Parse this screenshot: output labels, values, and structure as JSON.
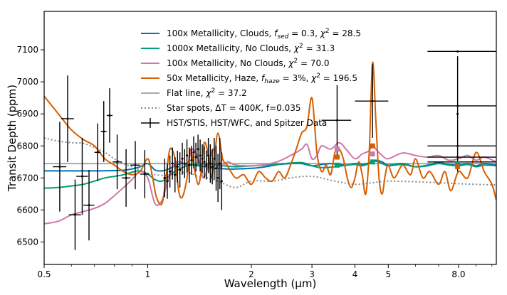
{
  "chart_data": {
    "type": "line",
    "xlabel": "Wavelength (μm)",
    "ylabel": "Transit Depth (ppm)",
    "xscale": "log",
    "xlim": [
      0.5,
      10.3
    ],
    "ylim": [
      6430,
      7220
    ],
    "x_ticks": [
      {
        "value": 0.5,
        "label": "0.5"
      },
      {
        "value": 1,
        "label": "1"
      },
      {
        "value": 2,
        "label": "2"
      },
      {
        "value": 3,
        "label": "3"
      },
      {
        "value": 4,
        "label": "4"
      },
      {
        "value": 5,
        "label": "5"
      },
      {
        "value": 8,
        "label": "8.0"
      }
    ],
    "y_ticks": [
      6500,
      6600,
      6700,
      6800,
      6900,
      7000,
      7100
    ],
    "legend_position": "top-center",
    "series": [
      {
        "name": "100x Metallicity, Clouds, f_sed = 0.3, χ² = 28.5",
        "label_parts": [
          "100x Metallicity, Clouds, ",
          "f",
          "sed",
          " = 0.3, ",
          "χ",
          "2",
          " = 28.5"
        ],
        "color": "#0072b2",
        "style": "solid",
        "width": 2,
        "x": [
          0.5,
          0.6,
          0.7,
          0.8,
          0.85,
          0.9,
          0.95,
          1.0,
          1.05,
          1.1,
          1.15,
          1.2,
          1.25,
          1.3,
          1.35,
          1.4,
          1.45,
          1.5,
          1.55,
          1.6,
          1.7,
          1.8,
          2.0,
          2.2,
          2.4,
          2.6,
          2.8,
          3.0,
          3.2,
          3.4,
          3.6,
          3.8,
          4.0,
          4.2,
          4.4,
          4.6,
          4.8,
          5.0,
          5.5,
          6.0,
          6.5,
          7.0,
          7.5,
          8.0,
          8.5,
          9.0,
          9.5,
          10.3
        ],
        "y": [
          6722,
          6722,
          6722,
          6723,
          6724,
          6728,
          6735,
          6745,
          6725,
          6722,
          6728,
          6738,
          6745,
          6743,
          6740,
          6738,
          6736,
          6734,
          6730,
          6730,
          6728,
          6728,
          6730,
          6735,
          6742,
          6745,
          6745,
          6738,
          6742,
          6745,
          6742,
          6740,
          6745,
          6742,
          6747,
          6755,
          6750,
          6740,
          6745,
          6735,
          6740,
          6748,
          6742,
          6740,
          6745,
          6738,
          6745,
          6740
        ]
      },
      {
        "name": "1000x Metallicity, No Clouds, χ² = 31.3",
        "label_parts": [
          "1000x Metallicity, No Clouds, ",
          "",
          "",
          "",
          "χ",
          "2",
          " = 31.3"
        ],
        "color": "#009e73",
        "style": "solid",
        "width": 2,
        "x": [
          0.5,
          0.55,
          0.6,
          0.65,
          0.7,
          0.75,
          0.8,
          0.85,
          0.9,
          0.95,
          1.0,
          1.05,
          1.1,
          1.15,
          1.2,
          1.3,
          1.4,
          1.5,
          1.6,
          1.8,
          2.0,
          2.2,
          2.5,
          2.8,
          3.0,
          3.2,
          3.5,
          3.8,
          4.0,
          4.2,
          4.4,
          4.6,
          4.8,
          5.0,
          5.5,
          6.0,
          6.5,
          7.0,
          7.5,
          8.0,
          8.5,
          9.0,
          9.5,
          10.3
        ],
        "y": [
          6668,
          6670,
          6675,
          6680,
          6690,
          6700,
          6705,
          6710,
          6718,
          6722,
          6712,
          6695,
          6690,
          6705,
          6720,
          6738,
          6742,
          6745,
          6740,
          6735,
          6738,
          6740,
          6745,
          6748,
          6738,
          6732,
          6735,
          6740,
          6742,
          6738,
          6745,
          6752,
          6745,
          6738,
          6742,
          6735,
          6738,
          6745,
          6740,
          6738,
          6742,
          6735,
          6740,
          6738
        ]
      },
      {
        "name": "100x Metallicity, No Clouds, χ² = 70.0",
        "label_parts": [
          "100x Metallicity, No Clouds, ",
          "",
          "",
          "",
          "χ",
          "2",
          " = 70.0"
        ],
        "color": "#cc79a7",
        "style": "solid",
        "width": 2,
        "x": [
          0.5,
          0.55,
          0.6,
          0.65,
          0.7,
          0.75,
          0.8,
          0.85,
          0.9,
          0.95,
          1.0,
          1.05,
          1.1,
          1.15,
          1.2,
          1.25,
          1.3,
          1.35,
          1.4,
          1.45,
          1.5,
          1.55,
          1.6,
          1.7,
          1.8,
          2.0,
          2.2,
          2.4,
          2.6,
          2.8,
          2.9,
          3.0,
          3.1,
          3.2,
          3.4,
          3.6,
          3.8,
          4.0,
          4.2,
          4.4,
          4.5,
          4.6,
          4.8,
          5.0,
          5.5,
          6.0,
          6.5,
          7.0,
          7.5,
          8.0,
          8.5,
          9.0,
          9.5,
          10.3
        ],
        "y": [
          6557,
          6565,
          6585,
          6595,
          6605,
          6620,
          6645,
          6670,
          6695,
          6720,
          6700,
          6620,
          6630,
          6700,
          6745,
          6750,
          6740,
          6790,
          6760,
          6700,
          6740,
          6790,
          6730,
          6750,
          6740,
          6738,
          6742,
          6752,
          6770,
          6790,
          6805,
          6760,
          6770,
          6800,
          6790,
          6810,
          6785,
          6760,
          6775,
          6785,
          6805,
          6790,
          6770,
          6760,
          6778,
          6770,
          6765,
          6770,
          6755,
          6760,
          6770,
          6755,
          6765,
          6750
        ]
      },
      {
        "name": "50x Metallicity, Haze, f_haze = 3%, χ² = 196.5",
        "label_parts": [
          "50x Metallicity, Haze, ",
          "f",
          "haze",
          " = 3%, ",
          "χ",
          "2",
          " = 196.5"
        ],
        "color": "#d55e00",
        "style": "solid",
        "width": 2,
        "x": [
          0.5,
          0.55,
          0.6,
          0.65,
          0.7,
          0.75,
          0.8,
          0.85,
          0.9,
          0.95,
          1.0,
          1.03,
          1.06,
          1.1,
          1.13,
          1.16,
          1.2,
          1.23,
          1.26,
          1.3,
          1.33,
          1.36,
          1.4,
          1.43,
          1.46,
          1.5,
          1.53,
          1.56,
          1.6,
          1.65,
          1.7,
          1.8,
          1.9,
          2.0,
          2.1,
          2.2,
          2.3,
          2.4,
          2.5,
          2.6,
          2.7,
          2.8,
          2.9,
          3.0,
          3.1,
          3.2,
          3.3,
          3.4,
          3.5,
          3.6,
          3.7,
          3.8,
          3.9,
          4.0,
          4.1,
          4.2,
          4.3,
          4.4,
          4.5,
          4.6,
          4.7,
          4.8,
          4.9,
          5.0,
          5.2,
          5.5,
          5.8,
          6.0,
          6.3,
          6.6,
          7.0,
          7.3,
          7.6,
          8.0,
          8.5,
          9.0,
          9.5,
          10.0,
          10.3
        ],
        "y": [
          6955,
          6900,
          6850,
          6820,
          6800,
          6760,
          6740,
          6720,
          6710,
          6720,
          6760,
          6710,
          6640,
          6620,
          6700,
          6790,
          6760,
          6660,
          6640,
          6700,
          6790,
          6740,
          6680,
          6720,
          6810,
          6770,
          6700,
          6760,
          6840,
          6760,
          6740,
          6700,
          6710,
          6680,
          6720,
          6700,
          6690,
          6720,
          6700,
          6740,
          6790,
          6840,
          6860,
          6950,
          6780,
          6720,
          6740,
          6710,
          6780,
          6790,
          6760,
          6700,
          6670,
          6700,
          6750,
          6710,
          6650,
          6780,
          7060,
          6880,
          6700,
          6650,
          6710,
          6740,
          6700,
          6740,
          6710,
          6760,
          6700,
          6720,
          6680,
          6720,
          6660,
          6720,
          6700,
          6780,
          6720,
          6680,
          6630
        ]
      },
      {
        "name": "Flat line, χ² = 37.2",
        "label_parts": [
          "Flat line, ",
          "",
          "",
          "",
          "χ",
          "2",
          " = 37.2"
        ],
        "color": "#aaaaaa",
        "style": "solid",
        "width": 2,
        "x": [
          0.5,
          10.3
        ],
        "y": [
          6745,
          6745
        ]
      },
      {
        "name": "Star spots, ΔT = 400K, f=0.035",
        "label_parts": [
          "Star spots, ΔT = 400",
          "K",
          "",
          ", f=0.035",
          "",
          "",
          ""
        ],
        "color": "#888888",
        "style": "dotted",
        "width": 2,
        "x": [
          0.5,
          0.55,
          0.6,
          0.65,
          0.7,
          0.75,
          0.8,
          0.85,
          0.9,
          0.95,
          1.0,
          1.1,
          1.2,
          1.3,
          1.4,
          1.5,
          1.6,
          1.8,
          2.0,
          2.3,
          2.6,
          3.0,
          3.5,
          4.0,
          4.5,
          5.0,
          6.0,
          7.0,
          8.0,
          9.0,
          10.3
        ],
        "y": [
          6825,
          6815,
          6810,
          6808,
          6795,
          6780,
          6760,
          6745,
          6735,
          6725,
          6715,
          6708,
          6712,
          6718,
          6705,
          6700,
          6690,
          6670,
          6690,
          6690,
          6700,
          6705,
          6690,
          6680,
          6685,
          6690,
          6688,
          6685,
          6682,
          6680,
          6678
        ]
      }
    ],
    "observations": {
      "name": "HST/STIS, HST/WFC, and Spitzer Data",
      "color": "#000000",
      "points": [
        {
          "x": 0.555,
          "y": 6735,
          "xerr": [
            0.53,
            0.58
          ],
          "yerr": 140
        },
        {
          "x": 0.585,
          "y": 6885,
          "xerr": [
            0.56,
            0.61
          ],
          "yerr": 135
        },
        {
          "x": 0.615,
          "y": 6585,
          "xerr": [
            0.59,
            0.64
          ],
          "yerr": 110
        },
        {
          "x": 0.645,
          "y": 6705,
          "xerr": [
            0.62,
            0.67
          ],
          "yerr": 120
        },
        {
          "x": 0.675,
          "y": 6615,
          "xerr": [
            0.65,
            0.7
          ],
          "yerr": 110
        },
        {
          "x": 0.715,
          "y": 6780,
          "xerr": [
            0.7,
            0.73
          ],
          "yerr": 90
        },
        {
          "x": 0.745,
          "y": 6845,
          "xerr": [
            0.73,
            0.76
          ],
          "yerr": 95
        },
        {
          "x": 0.775,
          "y": 6895,
          "xerr": [
            0.76,
            0.79
          ],
          "yerr": 85
        },
        {
          "x": 0.815,
          "y": 6750,
          "xerr": [
            0.79,
            0.84
          ],
          "yerr": 85
        },
        {
          "x": 0.865,
          "y": 6700,
          "xerr": [
            0.84,
            0.89
          ],
          "yerr": 90
        },
        {
          "x": 0.92,
          "y": 6740,
          "xerr": [
            0.89,
            0.95
          ],
          "yerr": 75
        },
        {
          "x": 0.98,
          "y": 6712,
          "xerr": [
            0.95,
            1.01
          ],
          "yerr": 75
        },
        {
          "x": 1.12,
          "y": 6700,
          "xerr": [
            1.11,
            1.13
          ],
          "yerr": 60
        },
        {
          "x": 1.14,
          "y": 6690,
          "xerr": [
            1.13,
            1.15
          ],
          "yerr": 55
        },
        {
          "x": 1.16,
          "y": 6720,
          "xerr": [
            1.15,
            1.17
          ],
          "yerr": 50
        },
        {
          "x": 1.18,
          "y": 6745,
          "xerr": [
            1.17,
            1.19
          ],
          "yerr": 50
        },
        {
          "x": 1.2,
          "y": 6710,
          "xerr": [
            1.19,
            1.21
          ],
          "yerr": 55
        },
        {
          "x": 1.22,
          "y": 6735,
          "xerr": [
            1.21,
            1.23
          ],
          "yerr": 50
        },
        {
          "x": 1.24,
          "y": 6725,
          "xerr": [
            1.23,
            1.25
          ],
          "yerr": 55
        },
        {
          "x": 1.26,
          "y": 6760,
          "xerr": [
            1.25,
            1.27
          ],
          "yerr": 50
        },
        {
          "x": 1.28,
          "y": 6745,
          "xerr": [
            1.27,
            1.29
          ],
          "yerr": 45
        },
        {
          "x": 1.3,
          "y": 6770,
          "xerr": [
            1.29,
            1.31
          ],
          "yerr": 50
        },
        {
          "x": 1.32,
          "y": 6740,
          "xerr": [
            1.31,
            1.33
          ],
          "yerr": 55
        },
        {
          "x": 1.34,
          "y": 6755,
          "xerr": [
            1.33,
            1.35
          ],
          "yerr": 45
        },
        {
          "x": 1.36,
          "y": 6780,
          "xerr": [
            1.35,
            1.37
          ],
          "yerr": 50
        },
        {
          "x": 1.38,
          "y": 6765,
          "xerr": [
            1.37,
            1.39
          ],
          "yerr": 45
        },
        {
          "x": 1.4,
          "y": 6790,
          "xerr": [
            1.39,
            1.41
          ],
          "yerr": 45
        },
        {
          "x": 1.42,
          "y": 6770,
          "xerr": [
            1.41,
            1.43
          ],
          "yerr": 50
        },
        {
          "x": 1.44,
          "y": 6760,
          "xerr": [
            1.43,
            1.45
          ],
          "yerr": 45
        },
        {
          "x": 1.46,
          "y": 6750,
          "xerr": [
            1.45,
            1.47
          ],
          "yerr": 50
        },
        {
          "x": 1.48,
          "y": 6740,
          "xerr": [
            1.47,
            1.49
          ],
          "yerr": 45
        },
        {
          "x": 1.5,
          "y": 6770,
          "xerr": [
            1.49,
            1.51
          ],
          "yerr": 55
        },
        {
          "x": 1.52,
          "y": 6745,
          "xerr": [
            1.51,
            1.53
          ],
          "yerr": 60
        },
        {
          "x": 1.54,
          "y": 6735,
          "xerr": [
            1.53,
            1.55
          ],
          "yerr": 55
        },
        {
          "x": 1.56,
          "y": 6760,
          "xerr": [
            1.55,
            1.57
          ],
          "yerr": 65
        },
        {
          "x": 1.58,
          "y": 6730,
          "xerr": [
            1.57,
            1.59
          ],
          "yerr": 70
        },
        {
          "x": 1.6,
          "y": 6700,
          "xerr": [
            1.59,
            1.61
          ],
          "yerr": 75
        },
        {
          "x": 1.62,
          "y": 6745,
          "xerr": [
            1.61,
            1.63
          ],
          "yerr": 80
        },
        {
          "x": 1.64,
          "y": 6690,
          "xerr": [
            1.63,
            1.65
          ],
          "yerr": 90
        },
        {
          "x": 3.55,
          "y": 6880,
          "xerr": [
            3.2,
            3.9
          ],
          "yerr": 110
        },
        {
          "x": 4.5,
          "y": 6940,
          "xerr": [
            4.0,
            5.0
          ],
          "yerr": 115
        },
        {
          "x": 7.95,
          "y": 7095,
          "xerr": [
            6.5,
            10.3
          ],
          "yerr": 0
        },
        {
          "x": 7.95,
          "y": 6925,
          "xerr": [
            6.5,
            10.3
          ],
          "yerr": 0
        },
        {
          "x": 7.95,
          "y": 6800,
          "xerr": [
            6.5,
            10.3
          ],
          "yerr": 0
        },
        {
          "x": 7.95,
          "y": 6765,
          "xerr": [
            6.5,
            10.3
          ],
          "yerr": 0
        },
        {
          "x": 7.95,
          "y": 6750,
          "xerr": [
            6.5,
            10.3
          ],
          "yerr": 0
        },
        {
          "x": 7.95,
          "y": 6900,
          "xerr": [
            7.9,
            8.0
          ],
          "yerr": 180
        }
      ]
    },
    "band_markers": [
      {
        "x": 3.55,
        "y": 6790,
        "color": "#cc79a7"
      },
      {
        "x": 3.55,
        "y": 6765,
        "color": "#d55e00"
      },
      {
        "x": 3.55,
        "y": 6740,
        "color": "#009e73"
      },
      {
        "x": 4.5,
        "y": 6800,
        "color": "#d55e00"
      },
      {
        "x": 4.5,
        "y": 6775,
        "color": "#cc79a7"
      },
      {
        "x": 4.5,
        "y": 6750,
        "color": "#009e73"
      },
      {
        "x": 7.95,
        "y": 6745,
        "color": "#009e73"
      },
      {
        "x": 7.95,
        "y": 6735,
        "color": "#d55e00"
      }
    ]
  }
}
